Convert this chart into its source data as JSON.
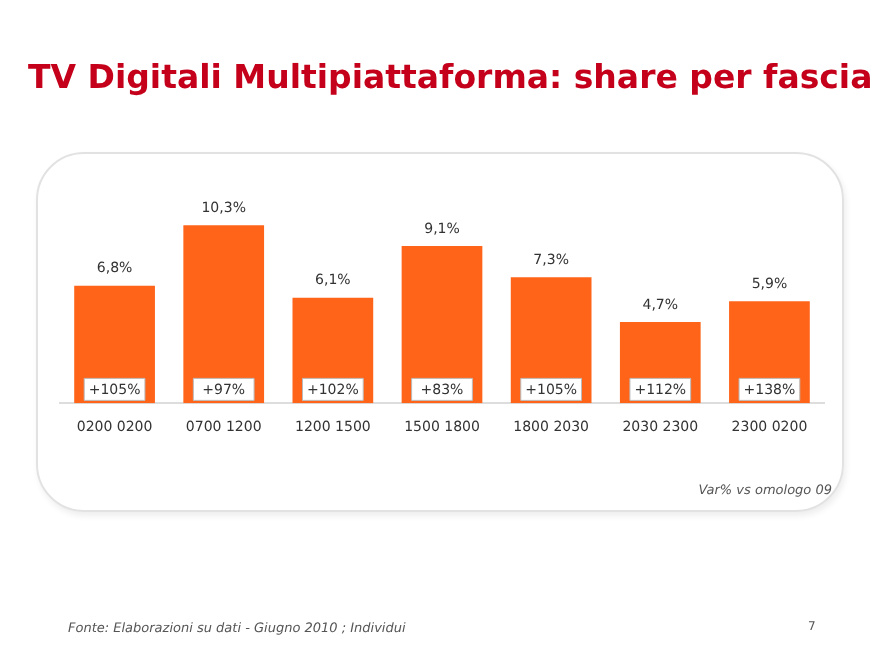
{
  "chart_data": {
    "type": "bar",
    "title": "TV Digitali Multipiattaforma: share per fascia",
    "categories": [
      "0200 0200",
      "0700 1200",
      "1200 1500",
      "1500 1800",
      "1800 2030",
      "2030 2300",
      "2300 0200"
    ],
    "values": [
      6.8,
      10.3,
      6.1,
      9.1,
      7.3,
      4.7,
      5.9
    ],
    "value_labels": [
      "6,8%",
      "10,3%",
      "6,1%",
      "9,1%",
      "7,3%",
      "4,7%",
      "5,9%"
    ],
    "color": "#ff6419",
    "grid": false,
    "legend": false,
    "tick_labels": "x",
    "annotations": [
      {
        "text": "+105%",
        "x": "0200 0200",
        "y": 0.8
      },
      {
        "text": "+97%",
        "x": "0700 1200",
        "y": 0.8
      },
      {
        "text": "+102%",
        "x": "1200 1500",
        "y": 0.8
      },
      {
        "text": "+83%",
        "x": "1500 1800",
        "y": 0.8
      },
      {
        "text": "+105%",
        "x": "1800 2030",
        "y": 0.8
      },
      {
        "text": "+112%",
        "x": "2030 2300",
        "y": 0.8
      },
      {
        "text": "+138%",
        "x": "2300 0200",
        "y": 0.8
      },
      "Var% vs omologo 09",
      "Fonte: Elaborazioni su dati - Giugno 2010 ; Individui",
      "7"
    ]
  }
}
